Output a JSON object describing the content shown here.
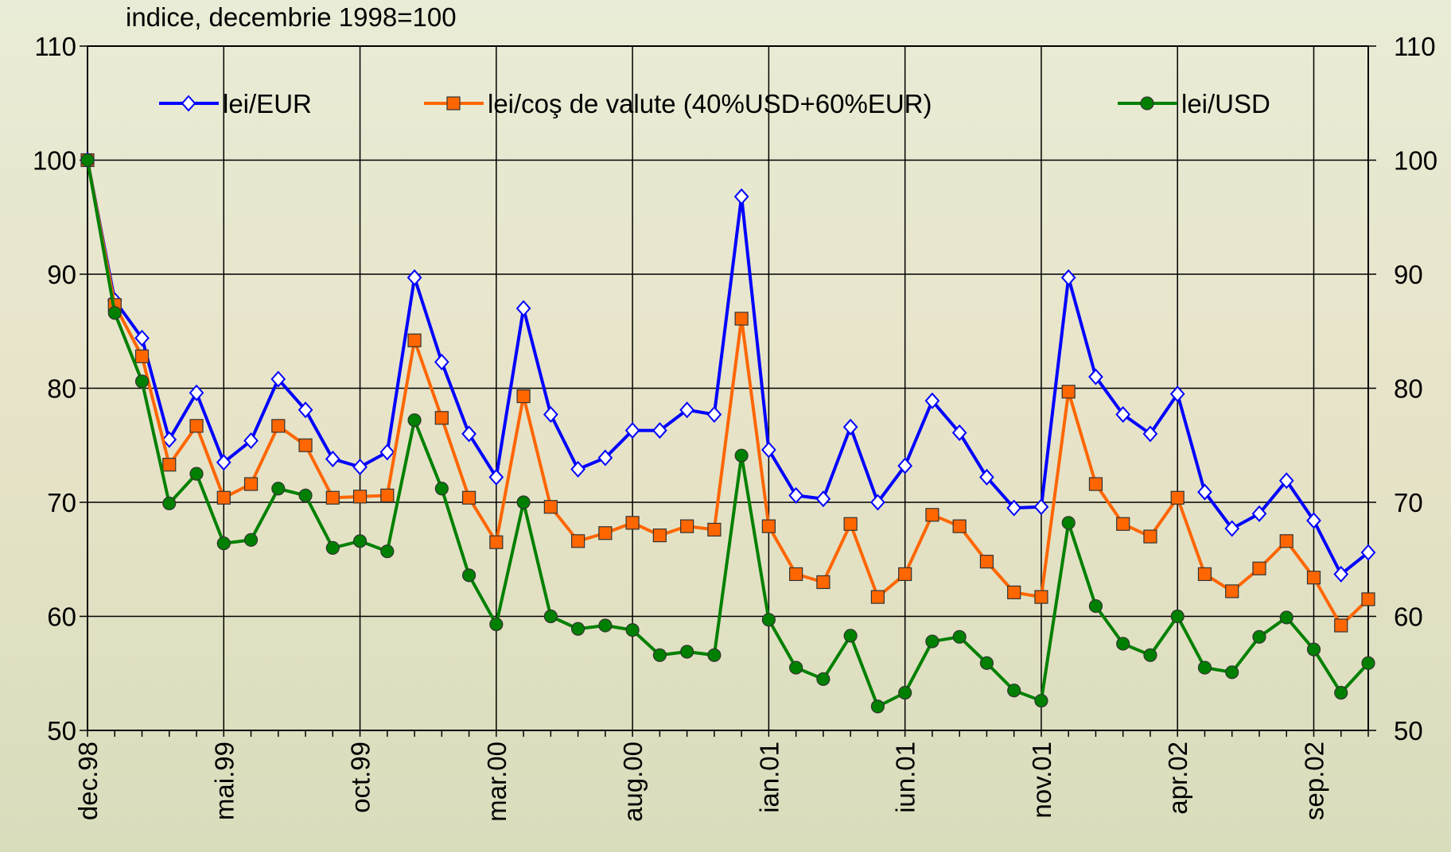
{
  "chart_data": {
    "type": "line",
    "title": "indice, decembrie 1998=100",
    "categories": [
      "dec.98",
      null,
      null,
      null,
      null,
      "mai.99",
      null,
      null,
      null,
      null,
      "oct.99",
      null,
      null,
      null,
      null,
      "mar.00",
      null,
      null,
      null,
      null,
      "aug.00",
      null,
      null,
      null,
      null,
      "ian.01",
      null,
      null,
      null,
      null,
      "iun.01",
      null,
      null,
      null,
      null,
      "nov.01",
      null,
      null,
      null,
      null,
      "apr.02",
      null,
      null,
      null,
      null,
      "sep.02",
      null,
      null
    ],
    "series": [
      {
        "name": "lei/EUR",
        "color": "#0000ff",
        "marker": "diamond",
        "values": [
          100,
          87.7,
          84.4,
          75.5,
          79.6,
          73.5,
          75.4,
          80.8,
          78.1,
          73.8,
          73.1,
          74.4,
          89.7,
          82.3,
          76.0,
          72.2,
          87.0,
          77.7,
          72.9,
          73.9,
          76.3,
          76.3,
          78.1,
          77.7,
          96.8,
          74.6,
          70.6,
          70.3,
          76.6,
          70.0,
          73.2,
          78.9,
          76.1,
          72.2,
          69.5,
          69.6,
          89.7,
          81.0,
          77.7,
          76.0,
          79.5,
          70.9,
          67.7,
          69.0,
          71.9,
          68.4,
          63.7,
          65.6
        ]
      },
      {
        "name": "lei/coş de valute (40%USD+60%EUR)",
        "color": "#ff6600",
        "marker": "square",
        "values": [
          100,
          87.3,
          82.8,
          73.3,
          76.7,
          70.4,
          71.6,
          76.7,
          75.0,
          70.4,
          70.5,
          70.6,
          84.2,
          77.4,
          70.4,
          66.5,
          79.3,
          69.6,
          66.6,
          67.3,
          68.2,
          67.1,
          67.9,
          67.6,
          86.1,
          67.9,
          63.7,
          63.0,
          68.1,
          61.7,
          63.7,
          68.9,
          67.9,
          64.8,
          62.1,
          61.7,
          79.7,
          71.6,
          68.1,
          67.0,
          70.4,
          63.7,
          62.2,
          64.2,
          66.6,
          63.4,
          59.2,
          61.5
        ]
      },
      {
        "name": "lei/USD",
        "color": "#008000",
        "marker": "circle",
        "values": [
          100,
          86.6,
          80.6,
          69.9,
          72.5,
          66.4,
          66.7,
          71.2,
          70.6,
          66.0,
          66.6,
          65.7,
          77.2,
          71.2,
          63.6,
          59.3,
          70.0,
          60.0,
          58.9,
          59.2,
          58.8,
          56.6,
          56.9,
          56.6,
          74.1,
          59.7,
          55.5,
          54.5,
          58.3,
          52.1,
          53.3,
          57.8,
          58.2,
          55.9,
          53.5,
          52.6,
          68.2,
          60.9,
          57.6,
          56.6,
          60.0,
          55.5,
          55.1,
          58.2,
          59.9,
          57.1,
          53.3,
          55.9
        ]
      }
    ],
    "ylim": [
      50,
      110
    ],
    "yticks": [
      50,
      60,
      70,
      80,
      90,
      100,
      110
    ],
    "y2lim": [
      50,
      110
    ],
    "y2ticks": [
      50,
      60,
      70,
      80,
      90,
      100,
      110
    ],
    "grid": true,
    "legend": "top"
  }
}
